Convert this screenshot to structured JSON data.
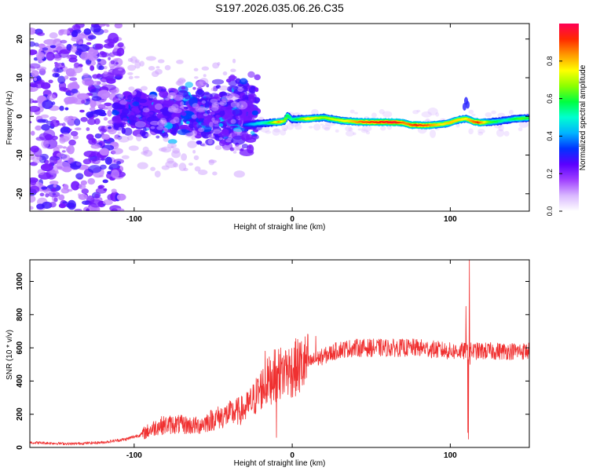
{
  "figure_title": "S197.2026.035.06.26.C35",
  "chart_data": [
    {
      "type": "heatmap",
      "title": "",
      "xlabel": "Height of straight line (km)",
      "ylabel": "Frequency (Hz)",
      "xlim": [
        -166,
        150
      ],
      "ylim": [
        -24.5,
        24
      ],
      "xticks": [
        -100,
        0,
        100
      ],
      "yticks": [
        -20,
        -10,
        0,
        10,
        20
      ],
      "colorbar": {
        "label": "Normalized spectral amplitude",
        "range": [
          0,
          1
        ],
        "ticks": [
          0.0,
          0.2,
          0.4,
          0.6,
          0.8
        ],
        "colormap": [
          "#ffffff",
          "#d9b8ff",
          "#a040ff",
          "#5a00ff",
          "#0033ff",
          "#00b4ff",
          "#00ffd0",
          "#00ff40",
          "#8cff00",
          "#ffff00",
          "#ff9900",
          "#ff2a00",
          "#ff0055"
        ]
      },
      "ridge": {
        "description_free": true,
        "points": [
          [
            -30,
            -2.2
          ],
          [
            -20,
            -1.8
          ],
          [
            -10,
            -1.5
          ],
          [
            -5,
            -1.2
          ],
          [
            -3,
            0.2
          ],
          [
            0,
            -0.8
          ],
          [
            10,
            -0.6
          ],
          [
            20,
            -0.3
          ],
          [
            30,
            -1.0
          ],
          [
            40,
            -1.4
          ],
          [
            50,
            -1.5
          ],
          [
            60,
            -1.5
          ],
          [
            70,
            -1.6
          ],
          [
            75,
            -2.2
          ],
          [
            80,
            -2.3
          ],
          [
            85,
            -2.3
          ],
          [
            90,
            -2.2
          ],
          [
            95,
            -2.0
          ],
          [
            100,
            -1.6
          ],
          [
            105,
            -0.9
          ],
          [
            110,
            -0.6
          ],
          [
            115,
            -1.4
          ],
          [
            120,
            -1.6
          ],
          [
            130,
            -1.3
          ],
          [
            140,
            -0.7
          ],
          [
            150,
            -0.4
          ]
        ]
      },
      "intensity_profile": [
        [
          -30,
          0.2
        ],
        [
          -25,
          0.3
        ],
        [
          -15,
          0.45
        ],
        [
          -8,
          0.8
        ],
        [
          -3,
          0.5
        ],
        [
          0,
          0.4
        ],
        [
          10,
          0.7
        ],
        [
          20,
          0.6
        ],
        [
          35,
          0.7
        ],
        [
          45,
          0.85
        ],
        [
          55,
          0.9
        ],
        [
          65,
          0.95
        ],
        [
          72,
          0.8
        ],
        [
          78,
          0.9
        ],
        [
          85,
          0.85
        ],
        [
          95,
          0.7
        ],
        [
          100,
          0.75
        ],
        [
          110,
          0.7
        ],
        [
          118,
          0.9
        ],
        [
          125,
          0.55
        ],
        [
          135,
          0.4
        ],
        [
          145,
          0.55
        ],
        [
          150,
          0.5
        ]
      ]
    },
    {
      "type": "line",
      "title": "",
      "xlabel": "Height of straight line (km)",
      "ylabel": "SNR (10 * v/v)",
      "xlim": [
        -166,
        150
      ],
      "ylim": [
        0,
        1130
      ],
      "xticks": [
        -100,
        0,
        100
      ],
      "yticks": [
        0,
        200,
        400,
        600,
        800,
        1000
      ],
      "series": [
        {
          "name": "SNR",
          "color": "#f03030",
          "trend": [
            [
              -166,
              30
            ],
            [
              -140,
              22
            ],
            [
              -120,
              30
            ],
            [
              -105,
              50
            ],
            [
              -95,
              80
            ],
            [
              -85,
              130
            ],
            [
              -75,
              140
            ],
            [
              -60,
              130
            ],
            [
              -50,
              170
            ],
            [
              -40,
              200
            ],
            [
              -30,
              230
            ],
            [
              -25,
              280
            ],
            [
              -20,
              350
            ],
            [
              -15,
              400
            ],
            [
              -10,
              440
            ],
            [
              0,
              470
            ],
            [
              10,
              510
            ],
            [
              20,
              550
            ],
            [
              30,
              590
            ],
            [
              40,
              600
            ],
            [
              60,
              600
            ],
            [
              80,
              600
            ],
            [
              100,
              580
            ],
            [
              110,
              580
            ],
            [
              120,
              580
            ],
            [
              150,
              580
            ]
          ],
          "spikes": [
            [
              -17,
              580
            ],
            [
              -12,
              520
            ],
            [
              -10,
              60
            ],
            [
              -8,
              560
            ],
            [
              -4,
              580
            ],
            [
              15,
              670
            ],
            [
              110,
              850
            ],
            [
              111,
              90
            ],
            [
              111.5,
              50
            ],
            [
              112,
              1130
            ],
            [
              112.5,
              500
            ]
          ]
        }
      ]
    }
  ]
}
